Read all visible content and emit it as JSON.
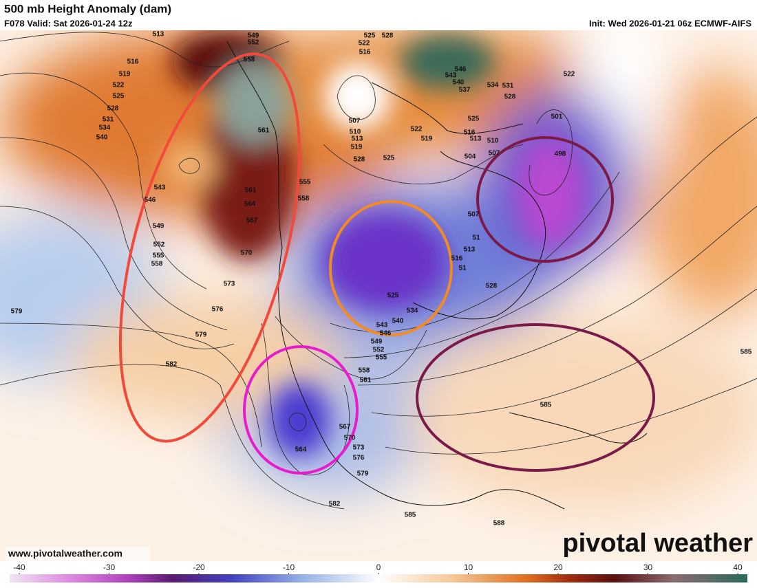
{
  "header": {
    "title": "500 mb Height Anomaly (dam)",
    "valid": "F078 Valid: Sat 2026-01-24 12z",
    "init": "Init: Wed 2026-01-21 06z ECMWF-AIFS"
  },
  "map": {
    "contour_labels": [
      513,
      516,
      519,
      522,
      525,
      528,
      531,
      534,
      540,
      543,
      546,
      549,
      552,
      555,
      558,
      561,
      561,
      564,
      567,
      570,
      573,
      576,
      579,
      582,
      579,
      549,
      552,
      558,
      555,
      558,
      525,
      528,
      522,
      516,
      507,
      510,
      513,
      519,
      528,
      525,
      546,
      543,
      540,
      537,
      534,
      531,
      528,
      525,
      516,
      513,
      510,
      519,
      522,
      507,
      504,
      522,
      501,
      498,
      507,
      51,
      513,
      516,
      51,
      528,
      525,
      534,
      540,
      543,
      546,
      549,
      552,
      555,
      558,
      561,
      567,
      570,
      573,
      576,
      579,
      582,
      585,
      588,
      585,
      585,
      564
    ]
  },
  "colorbar": {
    "lim": [
      -40,
      40
    ],
    "ticks": [
      -40,
      -30,
      -20,
      -10,
      0,
      10,
      20,
      30,
      40
    ]
  },
  "footer": {
    "website": "www.pivotalweather.com",
    "logo": "pivotal weather"
  }
}
